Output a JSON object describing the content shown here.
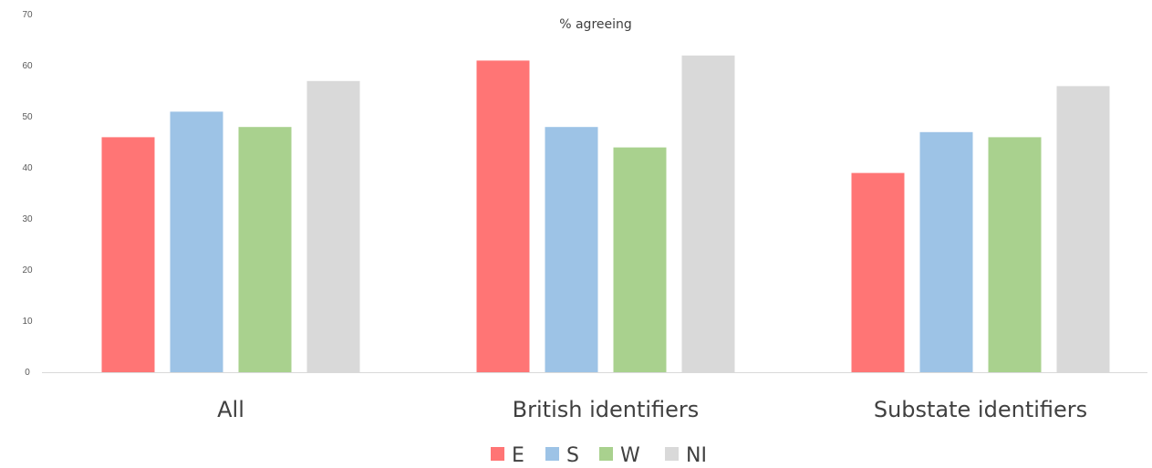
{
  "chart_data": {
    "type": "bar",
    "title": "% agreeing",
    "xlabel": "",
    "ylabel": "",
    "ylim": [
      0,
      70
    ],
    "yticks": [
      0,
      10,
      20,
      30,
      40,
      50,
      60,
      70
    ],
    "grid": false,
    "legend_position": "bottom",
    "categories": [
      "All",
      "British identifiers",
      "Substate identifiers"
    ],
    "series": [
      {
        "name": "E",
        "color": "#ff7575",
        "values": [
          46,
          61,
          39
        ]
      },
      {
        "name": "S",
        "color": "#9dc3e6",
        "values": [
          51,
          48,
          47
        ]
      },
      {
        "name": "W",
        "color": "#a9d18e",
        "values": [
          48,
          44,
          46
        ]
      },
      {
        "name": "NI",
        "color": "#d9d9d9",
        "values": [
          57,
          62,
          56
        ]
      }
    ]
  }
}
